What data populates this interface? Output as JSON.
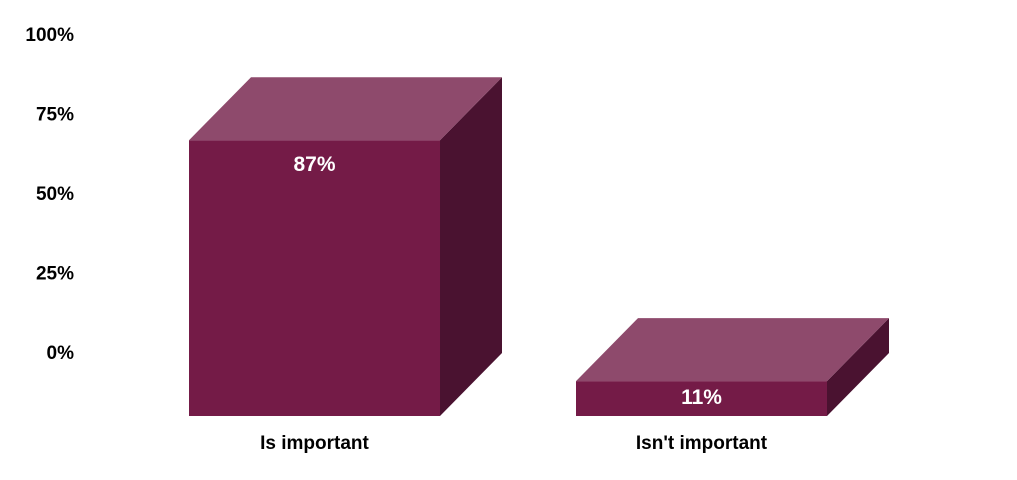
{
  "chart_data": {
    "type": "bar",
    "categories": [
      "Is important",
      "Isn't important"
    ],
    "values": [
      87,
      11
    ],
    "data_labels": [
      "87%",
      "11%"
    ],
    "y_ticks": [
      "100%",
      "75%",
      "50%",
      "25%",
      "0%"
    ],
    "ylim": [
      0,
      100
    ],
    "grid": false,
    "style": "3d-column",
    "colors": {
      "front": "#741b47",
      "top": "#8e4a6c",
      "side": "#4a1230"
    }
  }
}
